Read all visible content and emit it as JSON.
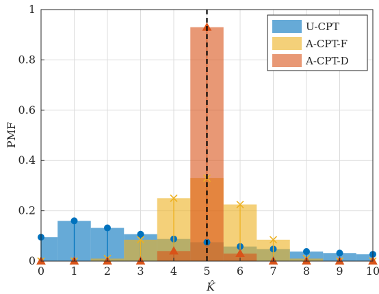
{
  "chart_data": {
    "type": "bar",
    "title": "",
    "xlabel": "K̂",
    "ylabel": "PMF",
    "xlim": [
      0,
      10
    ],
    "ylim": [
      0,
      1
    ],
    "grid": true,
    "legend_position": "top-right",
    "reference_line": {
      "x": 5,
      "style": "dashed",
      "color": "#000000"
    },
    "x": [
      0,
      1,
      2,
      3,
      4,
      5,
      6,
      7,
      8,
      9,
      10
    ],
    "x_tick_labels": [
      "0",
      "1",
      "2",
      "3",
      "4",
      "5",
      "6",
      "7",
      "8",
      "9",
      "10"
    ],
    "y_tick_labels": [
      "0",
      "0.2",
      "0.4",
      "0.6",
      "0.8",
      "1"
    ],
    "series": [
      {
        "name": "U-CPT",
        "color": "#0072BD",
        "marker": "circle",
        "values": [
          0.095,
          0.16,
          0.132,
          0.107,
          0.088,
          0.075,
          0.058,
          0.048,
          0.038,
          0.032,
          0.027
        ]
      },
      {
        "name": "A-CPT-F",
        "color": "#EDB120",
        "marker": "x",
        "values": [
          0.0,
          0.0,
          0.01,
          0.085,
          0.25,
          0.33,
          0.225,
          0.085,
          0.01,
          0.0,
          0.0
        ]
      },
      {
        "name": "A-CPT-D",
        "color": "#D95319",
        "marker": "triangle",
        "values": [
          0.0,
          0.0,
          0.0,
          0.0,
          0.04,
          0.93,
          0.03,
          0.0,
          0.0,
          0.0,
          0.0
        ]
      }
    ]
  }
}
